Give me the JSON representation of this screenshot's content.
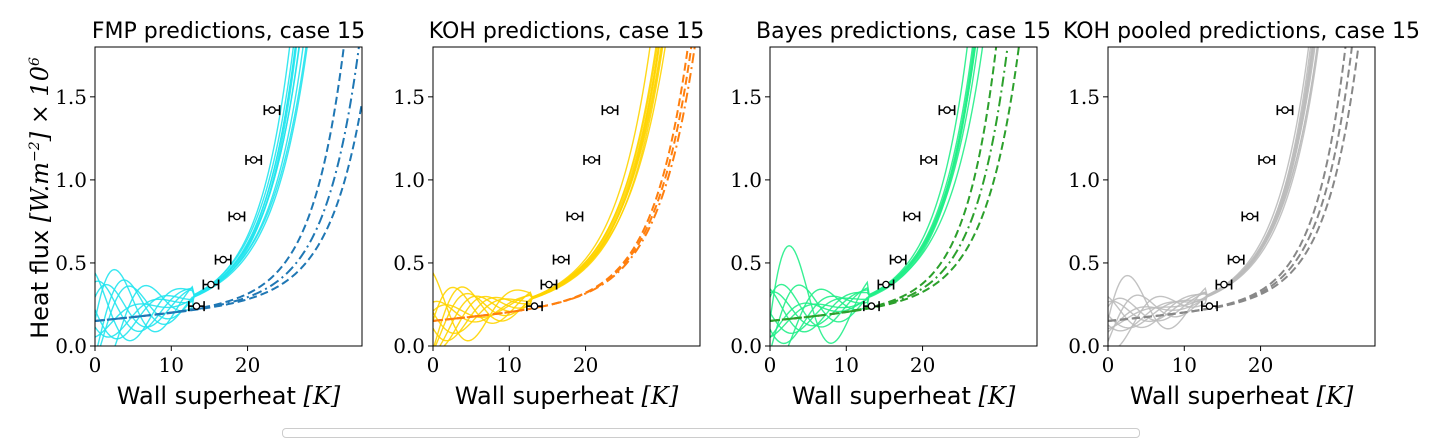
{
  "figure": {
    "ylabel": "Heat flux",
    "ylabel_unit": "[W.m",
    "ylabel_exp": "−2",
    "ylabel_tail": "] × 10",
    "ylabel_exp2": "6"
  },
  "chart_data": [
    {
      "type": "line",
      "title": "FMP predictions, case 15",
      "xlabel": "Wall superheat",
      "xlabel_unit": "[K]",
      "xlim": [
        0,
        35
      ],
      "ylim": [
        0,
        1.8
      ],
      "xticks": [
        "0",
        "10",
        "20"
      ],
      "yticks": [
        "0.0",
        "0.5",
        "1.0",
        "1.5"
      ],
      "colors": {
        "samples": "#22e4ee",
        "baseline": "#1f77b4"
      },
      "experimental": {
        "x": [
          13.3,
          15.2,
          16.8,
          18.6,
          20.8,
          23.2
        ],
        "y": [
          0.24,
          0.37,
          0.52,
          0.78,
          1.12,
          1.42
        ],
        "xerr": 1.0
      },
      "curve_params": {
        "base": 0.15,
        "knee": [
          15.5,
          15.5,
          15.8,
          16.0,
          16.0,
          16.2,
          16.4,
          16.6,
          15.8,
          16.3
        ],
        "tau": [
          4.0,
          4.2,
          4.4,
          4.1,
          4.3,
          4.6,
          4.0,
          4.5,
          4.2,
          4.4
        ],
        "wiggle": [
          0.4,
          -0.35,
          0.3,
          0.2,
          -0.25,
          0.1,
          0.35,
          -0.15,
          0.25,
          -0.3
        ]
      },
      "baseline_params": {
        "knee": [
          22.0,
          23.5,
          24.8
        ],
        "tau": [
          4.2,
          4.4,
          4.5
        ],
        "dash": [
          "8,4",
          "10,4,2,4",
          "8,4"
        ]
      }
    },
    {
      "type": "line",
      "title": "KOH predictions, case 15",
      "xlabel": "Wall superheat",
      "xlabel_unit": "[K]",
      "xlim": [
        0,
        35
      ],
      "ylim": [
        0,
        1.8
      ],
      "xticks": [
        "0",
        "10",
        "20"
      ],
      "yticks": [
        "0.0",
        "0.5",
        "1.0",
        "1.5"
      ],
      "colors": {
        "samples": "#ffd400",
        "baseline": "#ff7f0e"
      },
      "experimental": {
        "x": [
          13.3,
          15.2,
          16.8,
          18.6,
          20.8,
          23.2
        ],
        "y": [
          0.24,
          0.37,
          0.52,
          0.78,
          1.12,
          1.42
        ],
        "xerr": 1.0
      },
      "curve_params": {
        "base": 0.15,
        "knee": [
          17.0,
          17.3,
          17.6,
          18.0,
          17.2,
          17.8,
          18.2,
          17.5,
          17.9,
          17.4
        ],
        "tau": [
          4.6,
          4.8,
          5.0,
          4.7,
          4.9,
          5.1,
          4.8,
          5.0,
          4.7,
          4.9
        ],
        "wiggle": [
          0.25,
          -0.2,
          0.3,
          0.15,
          -0.1,
          0.2,
          0.28,
          -0.18,
          0.12,
          -0.22
        ]
      },
      "baseline_params": {
        "knee": [
          21.8,
          22.0,
          22.2
        ],
        "tau": [
          4.6,
          4.7,
          4.8
        ],
        "dash": [
          "8,4",
          "8,4",
          "10,4,2,4"
        ]
      }
    },
    {
      "type": "line",
      "title": "Bayes predictions, case 15",
      "xlabel": "Wall superheat",
      "xlabel_unit": "[K]",
      "xlim": [
        0,
        35
      ],
      "ylim": [
        0,
        1.8
      ],
      "xticks": [
        "0",
        "10",
        "20"
      ],
      "yticks": [
        "0.0",
        "0.5",
        "1.0",
        "1.5"
      ],
      "colors": {
        "samples": "#22ee88",
        "baseline": "#2ca02c"
      },
      "experimental": {
        "x": [
          13.3,
          15.2,
          16.8,
          18.6,
          20.8,
          23.2
        ],
        "y": [
          0.24,
          0.37,
          0.52,
          0.78,
          1.12,
          1.42
        ],
        "xerr": 1.0
      },
      "curve_params": {
        "base": 0.15,
        "knee": [
          15.6,
          15.8,
          16.0,
          16.2,
          15.9,
          16.4,
          16.6,
          16.1,
          15.7,
          16.3
        ],
        "tau": [
          4.1,
          4.3,
          4.5,
          4.2,
          4.4,
          4.6,
          4.1,
          4.3,
          4.5,
          4.2
        ],
        "wiggle": [
          0.6,
          -0.3,
          0.2,
          0.15,
          -0.25,
          0.1,
          0.3,
          -0.2,
          0.18,
          -0.12
        ]
      },
      "baseline_params": {
        "knee": [
          19.5,
          20.5,
          21.5
        ],
        "tau": [
          4.0,
          4.2,
          4.4
        ],
        "dash": [
          "8,4",
          "10,4,2,4",
          "8,4"
        ]
      }
    },
    {
      "type": "line",
      "title": "KOH pooled predictions, case 15",
      "xlabel": "Wall superheat",
      "xlabel_unit": "[K]",
      "xlim": [
        0,
        35
      ],
      "ylim": [
        0,
        1.8
      ],
      "xticks": [
        "0",
        "10",
        "20"
      ],
      "yticks": [
        "0.0",
        "0.5",
        "1.0",
        "1.5"
      ],
      "colors": {
        "samples": "#bbbbbb",
        "baseline": "#888888"
      },
      "experimental": {
        "x": [
          13.3,
          15.2,
          16.8,
          18.6,
          20.8,
          23.2
        ],
        "y": [
          0.24,
          0.37,
          0.52,
          0.78,
          1.12,
          1.42
        ],
        "xerr": 1.0
      },
      "curve_params": {
        "base": 0.15,
        "knee": [
          15.8,
          16.0,
          16.2,
          16.4,
          16.6,
          16.0,
          16.3,
          16.1,
          15.9,
          16.5
        ],
        "tau": [
          4.2,
          4.3,
          4.5,
          4.2,
          4.4,
          4.6,
          4.1,
          4.3,
          4.5,
          4.2
        ],
        "wiggle": [
          0.35,
          -0.2,
          0.15,
          0.1,
          -0.15,
          0.05,
          0.2,
          -0.1,
          0.12,
          -0.08
        ]
      },
      "baseline_params": {
        "knee": [
          21.0,
          21.6,
          22.2
        ],
        "tau": [
          4.0,
          4.1,
          4.2
        ],
        "dash": [
          "8,4",
          "8,4",
          "8,4"
        ]
      }
    }
  ]
}
